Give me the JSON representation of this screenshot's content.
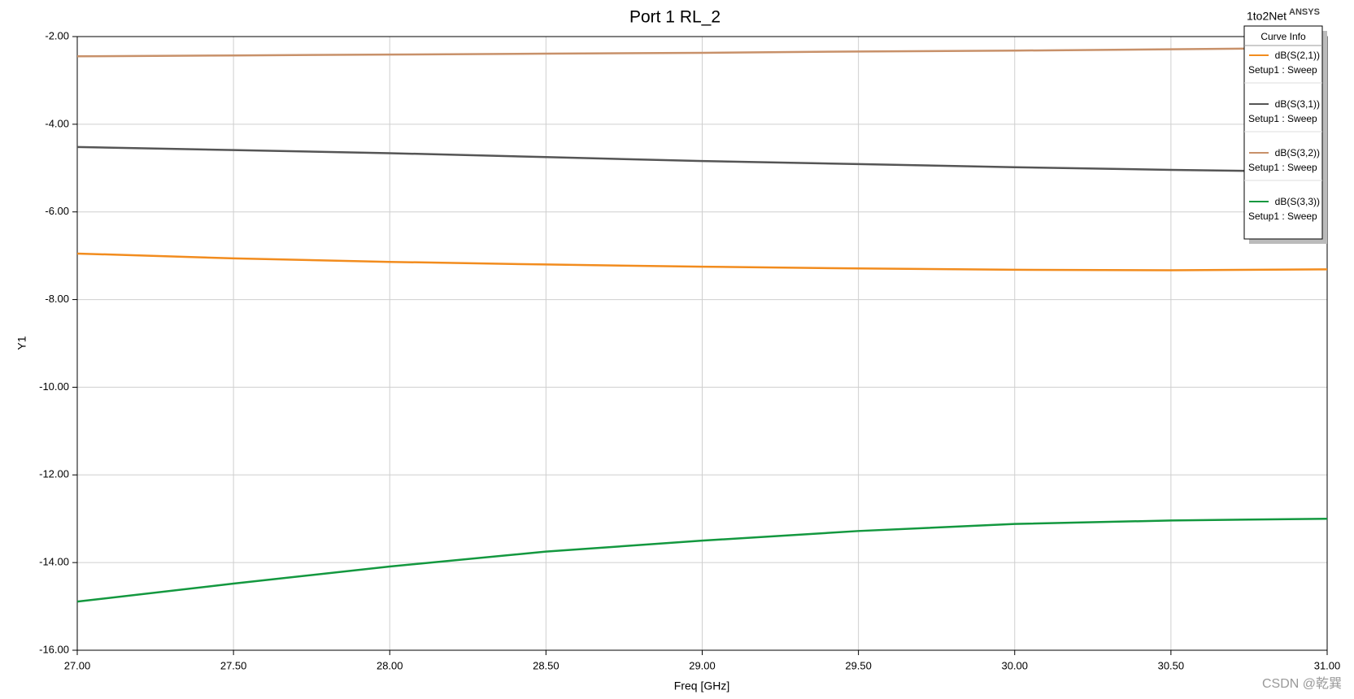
{
  "chart_data": {
    "type": "line",
    "title": "Port 1 RL_2",
    "xlabel": "Freq [GHz]",
    "ylabel": "Y1",
    "project": "1to2Net",
    "brand": "ANSYS",
    "legend_title": "Curve Info",
    "x": [
      27,
      27.5,
      28,
      28.5,
      29,
      29.5,
      30,
      30.5,
      31
    ],
    "series": [
      {
        "name": "dB(S(2,1))",
        "setup": "Setup1 : Sweep",
        "color": "#f28c1e",
        "values": [
          -6.95,
          -7.06,
          -7.14,
          -7.2,
          -7.25,
          -7.29,
          -7.32,
          -7.33,
          -7.31
        ]
      },
      {
        "name": "dB(S(3,1))",
        "setup": "Setup1 : Sweep",
        "color": "#555555",
        "values": [
          -4.52,
          -4.59,
          -4.66,
          -4.75,
          -4.84,
          -4.91,
          -4.98,
          -5.04,
          -5.09
        ]
      },
      {
        "name": "dB(S(3,2))",
        "setup": "Setup1 : Sweep",
        "color": "#c8916a",
        "values": [
          -2.45,
          -2.43,
          -2.41,
          -2.39,
          -2.37,
          -2.34,
          -2.32,
          -2.29,
          -2.26
        ]
      },
      {
        "name": "dB(S(3,3))",
        "setup": "Setup1 : Sweep",
        "color": "#13983f",
        "values": [
          -14.89,
          -14.48,
          -14.09,
          -13.75,
          -13.5,
          -13.28,
          -13.12,
          -13.04,
          -13.0
        ]
      }
    ],
    "xlim": [
      27,
      31
    ],
    "xticks": [
      {
        "value": 27,
        "label": "27.00"
      },
      {
        "value": 27.5,
        "label": "27.50"
      },
      {
        "value": 28,
        "label": "28.00"
      },
      {
        "value": 28.5,
        "label": "28.50"
      },
      {
        "value": 29,
        "label": "29.00"
      },
      {
        "value": 29.5,
        "label": "29.50"
      },
      {
        "value": 30,
        "label": "30.00"
      },
      {
        "value": 30.5,
        "label": "30.50"
      },
      {
        "value": 31,
        "label": "31.00"
      }
    ],
    "ylim": [
      -16,
      -2
    ],
    "yticks": [
      {
        "value": -2,
        "label": "-2.00"
      },
      {
        "value": -4,
        "label": "-4.00"
      },
      {
        "value": -6,
        "label": "-6.00"
      },
      {
        "value": -8,
        "label": "-8.00"
      },
      {
        "value": -10,
        "label": "-10.00"
      },
      {
        "value": -12,
        "label": "-12.00"
      },
      {
        "value": -14,
        "label": "-14.00"
      },
      {
        "value": -16,
        "label": "-16.00"
      }
    ],
    "grid": true
  },
  "watermark": "CSDN @乾巽"
}
